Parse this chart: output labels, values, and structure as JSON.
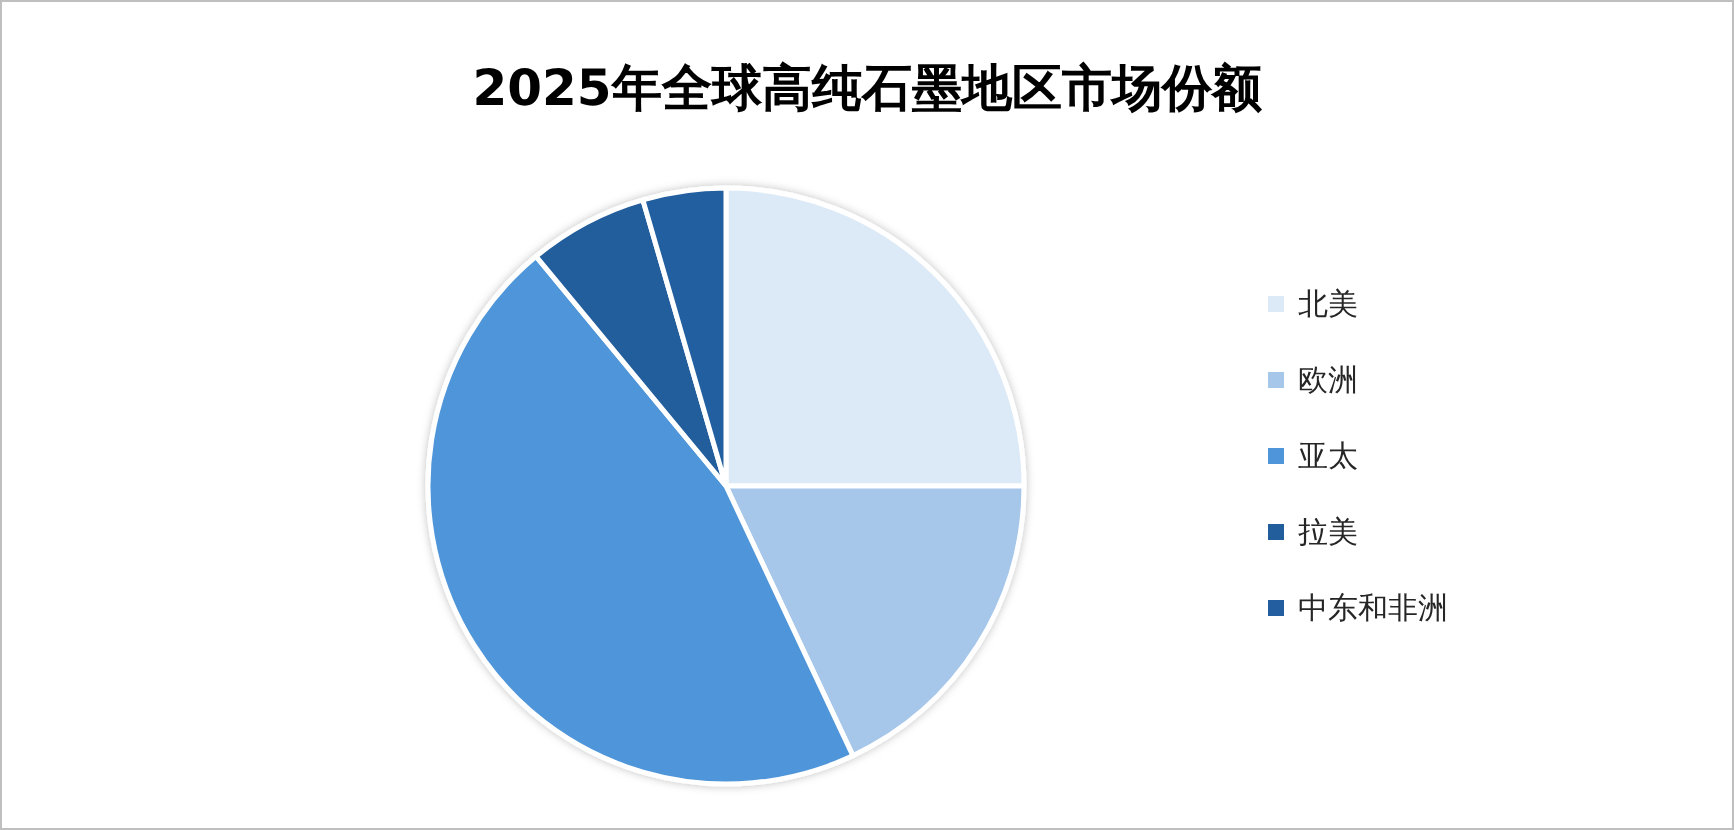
{
  "chart_data": {
    "type": "pie",
    "title": "2025年全球高纯石墨地区市场份额",
    "categories": [
      "北美",
      "欧洲",
      "亚太",
      "拉美",
      "中东和非洲"
    ],
    "values": [
      25,
      18,
      46,
      6.5,
      4.5
    ],
    "colors": [
      "#dce9f6",
      "#a7c7ea",
      "#4f95d9",
      "#225d9c",
      "#235fa0"
    ],
    "legend": "right"
  }
}
